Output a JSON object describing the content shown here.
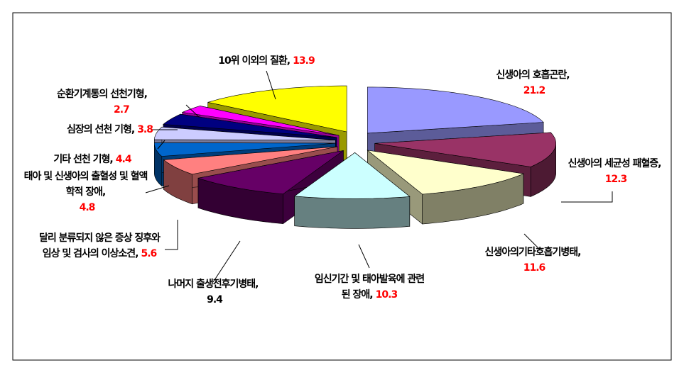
{
  "chart_data": {
    "type": "pie3d",
    "categories": [
      "신생아의 호흡곤란,",
      "신생아의 세균성 패혈증,",
      "신생아의기타호흡기병태,",
      "임신기간 및 태아발육에 관련된 장애,",
      "나머지 출생전후기병태,",
      "달리 분류되지 않은 증상 징후와 임상 및 검사의 이상소견,",
      "태아 및 신생아의 출혈성 및 혈액학적 장애,",
      "기타 선천 기형,",
      "심장의 선천 기형,",
      "순환기계통의 선천기형,",
      "10위 이외의 질환,"
    ],
    "values": [
      21.2,
      12.3,
      11.6,
      10.3,
      9.4,
      5.6,
      4.8,
      4.4,
      3.8,
      2.7,
      13.9
    ],
    "colors": [
      "#9999ff",
      "#993366",
      "#ffffcc",
      "#ccffff",
      "#660066",
      "#ff8080",
      "#0066cc",
      "#ccccff",
      "#000080",
      "#ff00ff",
      "#ffff00"
    ],
    "value_label_colors": [
      "#ff0000",
      "#ff0000",
      "#ff0000",
      "#ff0000",
      "#000000",
      "#ff0000",
      "#ff0000",
      "#ff0000",
      "#ff0000",
      "#ff0000",
      "#ff0000"
    ]
  }
}
